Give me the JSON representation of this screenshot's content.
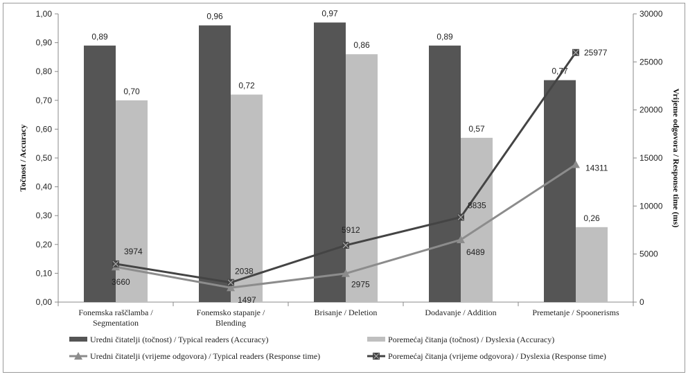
{
  "chart_data": {
    "type": "bar",
    "categories": [
      [
        "Fonemska raščlamba /",
        "Segmentation"
      ],
      [
        "Fonemsko stapanje /",
        "Blending"
      ],
      [
        "Brisanje / Deletion"
      ],
      [
        "Dodavanje / Addition"
      ],
      [
        "Premetanje / Spoonerisms"
      ]
    ],
    "bar_series": [
      {
        "name": "Uredni čitatelji (točnost) / Typical readers (Accuracy)",
        "color": "#555555",
        "values": [
          0.89,
          0.96,
          0.97,
          0.89,
          0.77
        ],
        "labels": [
          "0,89",
          "0,96",
          "0,97",
          "0,89",
          "0,77"
        ]
      },
      {
        "name": "Poremećaj čitanja (točnost) / Dyslexia (Accuracy)",
        "color": "#bfbfbf",
        "values": [
          0.7,
          0.72,
          0.86,
          0.57,
          0.26
        ],
        "labels": [
          "0,70",
          "0,72",
          "0,86",
          "0,57",
          "0,26"
        ]
      }
    ],
    "line_series": [
      {
        "name": "Uredni čitatelji (vrijeme odgovora) / Typical readers (Response time)",
        "color": "#8c8c8c",
        "marker": "triangle",
        "values": [
          3660,
          1497,
          2975,
          6489,
          14311
        ]
      },
      {
        "name": "Poremećaj čitanja (vrijeme odgovora) / Dyslexia (Response time)",
        "color": "#444444",
        "marker": "square-x",
        "values": [
          3974,
          2038,
          5912,
          8835,
          25977
        ]
      }
    ],
    "y_left": {
      "label": "Točnost / Accuracy",
      "range": [
        0,
        1
      ],
      "ticks": [
        "0,00",
        "0,10",
        "0,20",
        "0,30",
        "0,40",
        "0,50",
        "0,60",
        "0,70",
        "0,80",
        "0,90",
        "1,00"
      ]
    },
    "y_right": {
      "label": "Vrijeme odgovora / Response time (ms)",
      "range": [
        0,
        30000
      ],
      "ticks": [
        "0",
        "5000",
        "10000",
        "15000",
        "20000",
        "25000",
        "30000"
      ]
    },
    "grid": false,
    "legend_position": "bottom"
  }
}
